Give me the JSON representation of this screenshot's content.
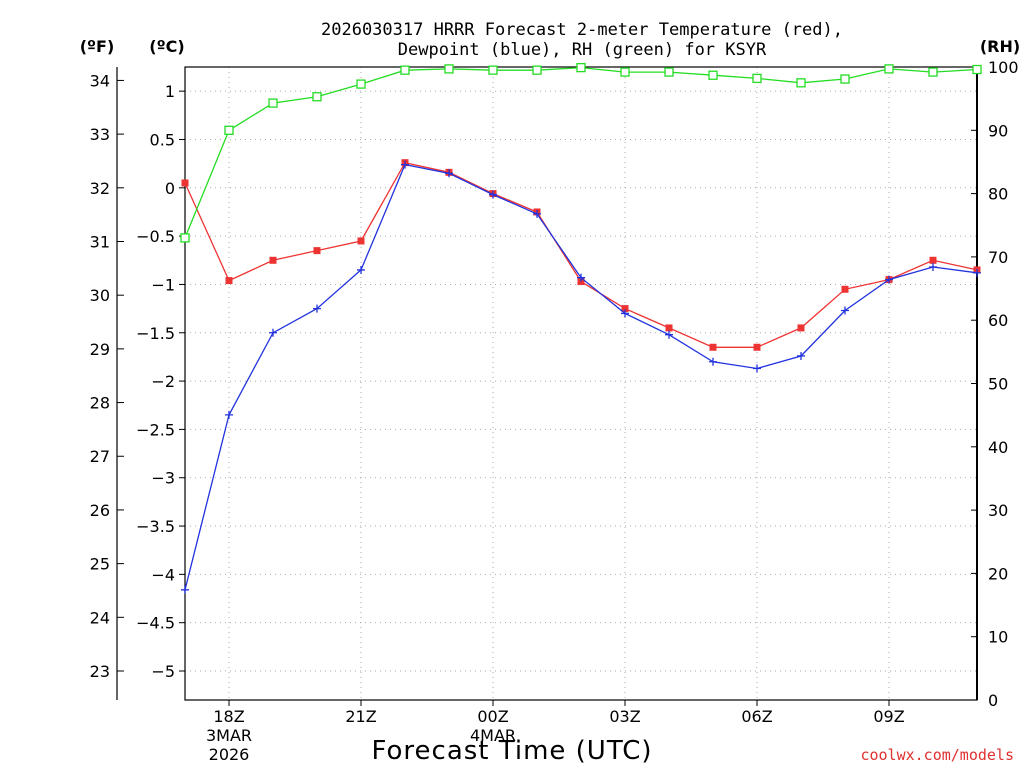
{
  "chart_data": {
    "type": "line",
    "title_line1": "2026030317 HRRR Forecast 2-meter Temperature (red),",
    "title_line2": "Dewpoint (blue), RH (green) for KSYR",
    "xlabel": "Forecast Time (UTC)",
    "watermark": "coolwx.com/models",
    "unit_labels": {
      "fahrenheit": "(ºF)",
      "celsius": "(ºC)",
      "rh": "(RH)"
    },
    "x_ticks": [
      {
        "hour": 1,
        "label": "18Z",
        "sub1": "3MAR",
        "sub2": "2026"
      },
      {
        "hour": 4,
        "label": "21Z",
        "sub1": "",
        "sub2": ""
      },
      {
        "hour": 7,
        "label": "00Z",
        "sub1": "4MAR",
        "sub2": ""
      },
      {
        "hour": 10,
        "label": "03Z",
        "sub1": "",
        "sub2": ""
      },
      {
        "hour": 13,
        "label": "06Z",
        "sub1": "",
        "sub2": ""
      },
      {
        "hour": 16,
        "label": "09Z",
        "sub1": "",
        "sub2": ""
      }
    ],
    "xlim": [
      0,
      18
    ],
    "celsius_axis": {
      "ylim": [
        -5.3,
        1.25
      ],
      "ticks": [
        1,
        0.5,
        0,
        -0.5,
        -1,
        -1.5,
        -2,
        -2.5,
        -3,
        -3.5,
        -4,
        -4.5,
        -5
      ],
      "tick_labels": [
        "1",
        "0.5",
        "0",
        "−0.5",
        "−1",
        "−1.5",
        "−2",
        "−2.5",
        "−3",
        "−3.5",
        "−4",
        "−4.5",
        "−5"
      ]
    },
    "fahrenheit_axis": {
      "ticks": [
        34,
        33,
        32,
        31,
        30,
        29,
        28,
        27,
        26,
        25,
        24,
        23
      ],
      "tick_labels": [
        "34",
        "33",
        "32",
        "31",
        "30",
        "29",
        "28",
        "27",
        "26",
        "25",
        "24",
        "23"
      ]
    },
    "rh_axis": {
      "ylim": [
        0,
        100
      ],
      "ticks": [
        100,
        90,
        80,
        70,
        60,
        50,
        40,
        30,
        20,
        10,
        0
      ],
      "tick_labels": [
        "100",
        "90",
        "80",
        "70",
        "60",
        "50",
        "40",
        "30",
        "20",
        "10",
        "0"
      ]
    },
    "x": [
      0,
      1,
      2,
      3,
      4,
      5,
      6,
      7,
      8,
      9,
      10,
      11,
      12,
      13,
      14,
      15,
      16,
      17,
      18
    ],
    "series": [
      {
        "name": "Temperature",
        "units": "C",
        "color": "#ee3333",
        "marker": "filled-square",
        "values": [
          0.05,
          -0.96,
          -0.75,
          -0.65,
          -0.55,
          0.26,
          0.16,
          -0.06,
          -0.25,
          -0.97,
          -1.25,
          -1.45,
          -1.65,
          -1.65,
          -1.45,
          -1.05,
          -0.95,
          -0.75,
          -0.85
        ]
      },
      {
        "name": "Dewpoint",
        "units": "C",
        "color": "#2233dd",
        "marker": "plus",
        "values": [
          -4.16,
          -2.35,
          -1.5,
          -1.25,
          -0.85,
          0.24,
          0.15,
          -0.07,
          -0.27,
          -0.93,
          -1.3,
          -1.52,
          -1.8,
          -1.87,
          -1.74,
          -1.27,
          -0.95,
          -0.82,
          -0.88
        ]
      },
      {
        "name": "RH",
        "units": "%",
        "color": "#22dd22",
        "marker": "open-square",
        "values": [
          73,
          90,
          94.3,
          95.3,
          97.3,
          99.5,
          99.7,
          99.5,
          99.5,
          99.9,
          99.2,
          99.2,
          98.7,
          98.2,
          97.5,
          98.1,
          99.7,
          99.2,
          99.6
        ]
      }
    ]
  }
}
